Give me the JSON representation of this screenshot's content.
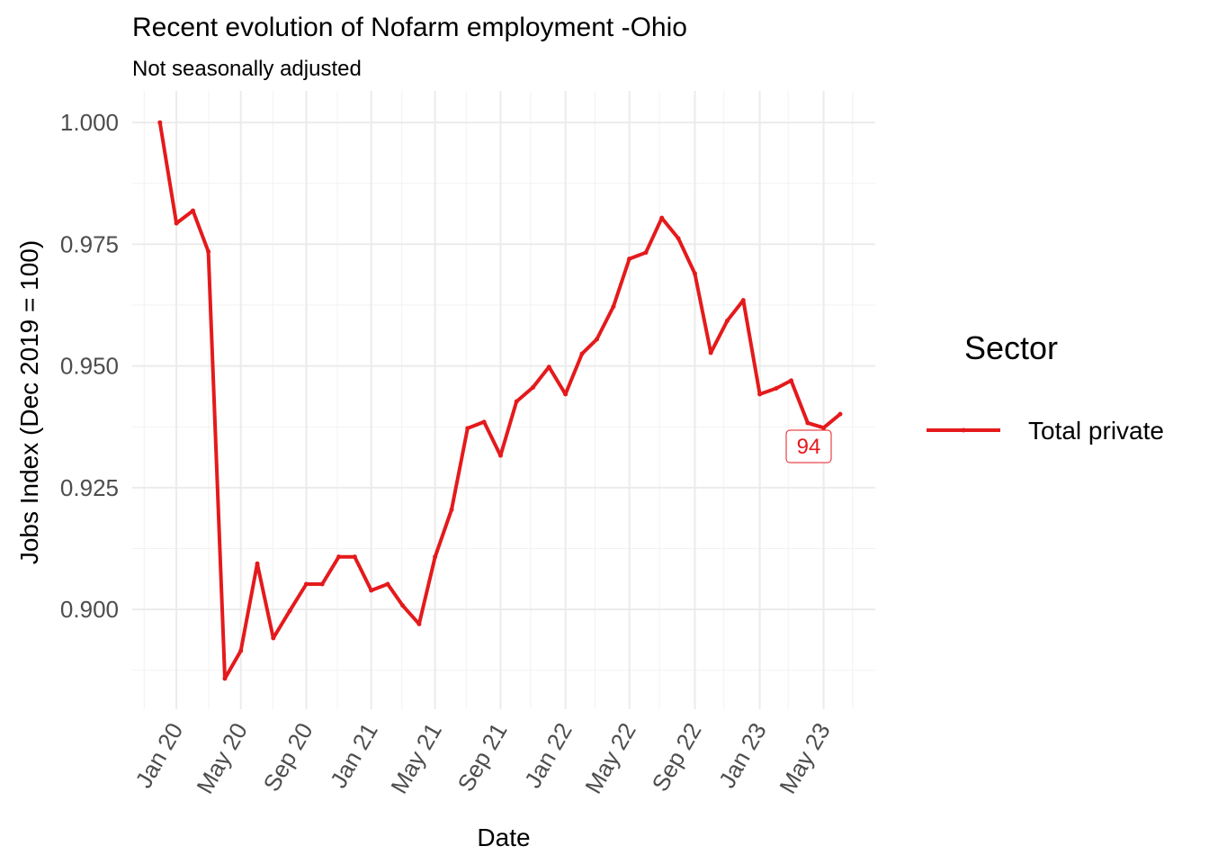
{
  "chart_data": {
    "type": "line",
    "title": "Recent evolution of Nofarm employment -Ohio",
    "subtitle": "Not seasonally adjusted",
    "xlabel": "Date",
    "ylabel": "Jobs Index (Dec 2019 = 100)",
    "ylim": [
      0.8795,
      1.0065
    ],
    "yticks": [
      0.9,
      0.925,
      0.95,
      0.975,
      1.0
    ],
    "ytick_labels": [
      "0.900",
      "0.925",
      "0.950",
      "0.975",
      "1.000"
    ],
    "xlim": [
      "2019-10-10",
      "2023-08-06"
    ],
    "xticks": [
      "2020-01-01",
      "2020-05-01",
      "2020-09-01",
      "2021-01-01",
      "2021-05-01",
      "2021-09-01",
      "2022-01-01",
      "2022-05-01",
      "2022-09-01",
      "2023-01-01",
      "2023-05-01"
    ],
    "xtick_labels": [
      "Jan 20",
      "May 20",
      "Sep 20",
      "Jan 21",
      "May 21",
      "Sep 21",
      "Jan 22",
      "May 22",
      "Sep 22",
      "Jan 23",
      "May 23"
    ],
    "grid": true,
    "legend": {
      "title": "Sector",
      "position": "right"
    },
    "series": [
      {
        "name": "Total private",
        "color": "#e41a1c",
        "x": [
          "2019-12-01",
          "2020-01-01",
          "2020-02-01",
          "2020-03-01",
          "2020-04-01",
          "2020-05-01",
          "2020-06-01",
          "2020-07-01",
          "2020-08-01",
          "2020-09-01",
          "2020-10-01",
          "2020-11-01",
          "2020-12-01",
          "2021-01-01",
          "2021-02-01",
          "2021-03-01",
          "2021-04-01",
          "2021-05-01",
          "2021-06-01",
          "2021-07-01",
          "2021-08-01",
          "2021-09-01",
          "2021-10-01",
          "2021-11-01",
          "2021-12-01",
          "2022-01-01",
          "2022-02-01",
          "2022-03-01",
          "2022-04-01",
          "2022-05-01",
          "2022-06-01",
          "2022-07-01",
          "2022-08-01",
          "2022-09-01",
          "2022-10-01",
          "2022-11-01",
          "2022-12-01",
          "2023-01-01",
          "2023-02-01",
          "2023-03-01",
          "2023-04-01",
          "2023-05-01",
          "2023-06-01"
        ],
        "values": [
          1.0,
          0.9793,
          0.9819,
          0.9735,
          0.8858,
          0.8915,
          0.9094,
          0.8941,
          0.8997,
          0.9052,
          0.9052,
          0.9108,
          0.9108,
          0.9039,
          0.9052,
          0.9008,
          0.897,
          0.9108,
          0.9205,
          0.9372,
          0.9385,
          0.9316,
          0.9427,
          0.9456,
          0.9498,
          0.9442,
          0.9525,
          0.9555,
          0.9622,
          0.972,
          0.9733,
          0.9804,
          0.9762,
          0.969,
          0.9527,
          0.9593,
          0.9635,
          0.9442,
          0.9454,
          0.947,
          0.9383,
          0.9373,
          0.9401
        ]
      }
    ],
    "annotation": {
      "text": "94",
      "x": "2023-04-01",
      "y": 0.9383
    }
  }
}
